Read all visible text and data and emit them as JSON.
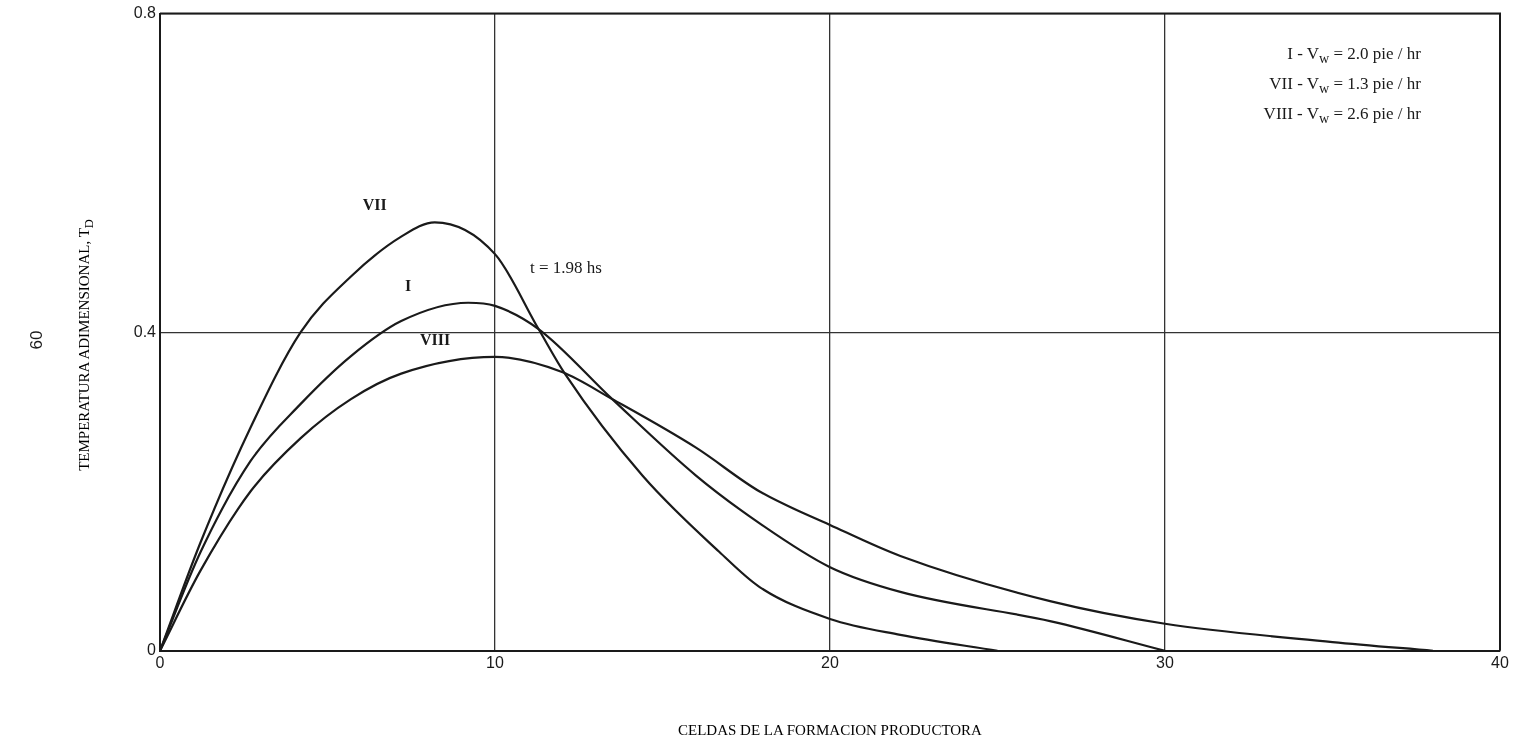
{
  "chart_data": {
    "type": "line",
    "xlabel": "CELDAS DE LA FORMACION PRODUCTORA",
    "ylabel": "TEMPERATURA ADIMENSIONAL, T$_{D}$",
    "annotations": [
      "I - V$_{w}$ = 2.0 pie / hr",
      "VII - V$_{w}$ = 1.3 pie / hr",
      "VIII - V$_{w}$ = 2.6 pie / hr",
      "t = 1.98 hs",
      "60"
    ],
    "xlim": [
      0,
      40
    ],
    "xticks": [
      0,
      10,
      20,
      30,
      40
    ],
    "ylim": [
      0,
      0.8
    ],
    "yticks": [
      0,
      0.4,
      0.8
    ],
    "grid": true,
    "marker": "none",
    "line_style": "solid",
    "series": [
      {
        "name": "VII",
        "color": "#1a1a1a",
        "x": [
          0,
          1.2,
          2.7,
          4.2,
          5.7,
          7.2,
          8.2,
          10,
          11.3,
          12.1,
          14.4,
          16.7,
          17.9,
          20,
          22.1,
          25
        ],
        "values": [
          0,
          0.135,
          0.28,
          0.4,
          0.47,
          0.52,
          0.538,
          0.498,
          0.404,
          0.347,
          0.22,
          0.124,
          0.08,
          0.04,
          0.02,
          0
        ]
      },
      {
        "name": "I",
        "color": "#1a1a1a",
        "x": [
          0,
          1.2,
          2.7,
          4.2,
          5.7,
          7.2,
          9.2,
          10,
          11.3,
          13.5,
          16,
          17.9,
          20,
          22.1,
          26.6,
          30
        ],
        "values": [
          0,
          0.123,
          0.238,
          0.31,
          0.37,
          0.414,
          0.437,
          0.433,
          0.404,
          0.316,
          0.22,
          0.16,
          0.105,
          0.074,
          0.037,
          0
        ]
      },
      {
        "name": "VIII",
        "color": "#1a1a1a",
        "x": [
          0,
          1.2,
          2.7,
          4.2,
          5.7,
          7.2,
          10,
          12,
          13.5,
          16,
          17.9,
          20,
          22.1,
          26.6,
          30,
          35,
          38
        ],
        "values": [
          0,
          0.1,
          0.2,
          0.267,
          0.316,
          0.348,
          0.369,
          0.35,
          0.316,
          0.255,
          0.2,
          0.158,
          0.119,
          0.062,
          0.034,
          0.011,
          0
        ]
      }
    ]
  }
}
